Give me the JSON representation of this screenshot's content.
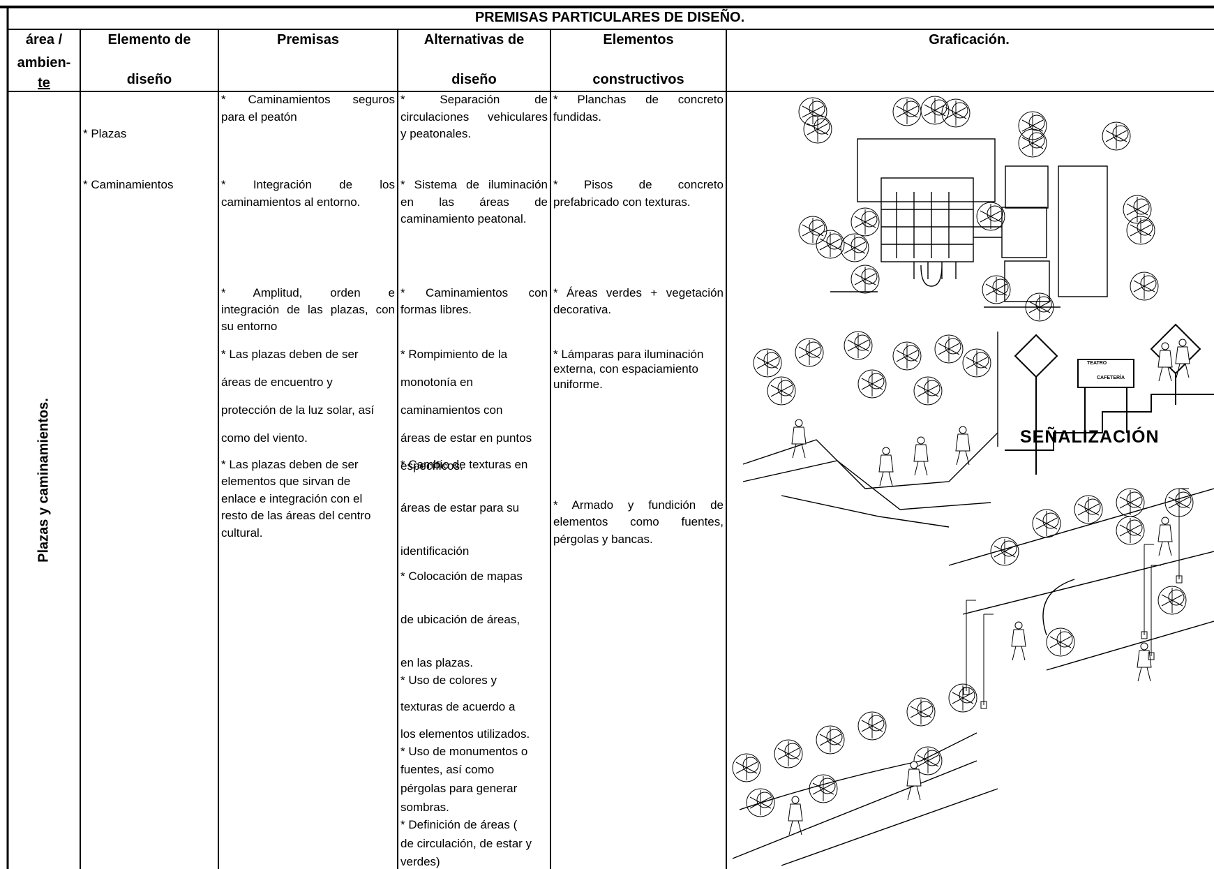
{
  "title": "PREMISAS PARTICULARES DE DISEÑO.",
  "headers": [
    [
      "área /",
      "ambien-",
      "te"
    ],
    [
      "Elemento de",
      "diseño"
    ],
    [
      "Premisas"
    ],
    [
      "Alternativas de",
      "diseño"
    ],
    [
      "Elementos",
      "constructivos"
    ],
    [
      "Graficación."
    ]
  ],
  "area": "Plazas y caminamientos.",
  "elementos_diseno": [
    [
      "* Plazas"
    ],
    [
      "* Caminamientos"
    ]
  ],
  "premisas": [
    [
      "* Caminamientos seguros",
      "para el peatón"
    ],
    [
      "* Integración de los",
      "caminamientos al entorno."
    ],
    [
      "* Amplitud, orden e",
      "integración de las plazas, con",
      "su entorno"
    ],
    [
      "* Las plazas deben de ser",
      "áreas de encuentro y",
      "protección de la luz solar, así",
      "como del viento."
    ],
    [
      "* Las plazas deben de ser",
      "elementos que sirvan de",
      "enlace e integración con el",
      "resto de las áreas del centro",
      "cultural."
    ]
  ],
  "alternativas": [
    [
      "* Separación de",
      "circulaciones vehiculares",
      "y peatonales."
    ],
    [
      "* Sistema de iluminación",
      "en las áreas de",
      "caminamiento peatonal."
    ],
    [
      "* Caminamientos con",
      "formas libres."
    ],
    [
      "* Rompimiento de la",
      "monotonía en",
      "caminamientos con",
      "áreas de estar en puntos",
      "específicos."
    ],
    [
      "* Cambio de texturas en",
      "áreas de estar para su",
      "identificación"
    ],
    [
      "* Colocación de mapas",
      "de ubicación de áreas,",
      "en las plazas."
    ],
    [
      "* Uso de colores y",
      "texturas de acuerdo a",
      "los elementos utilizados."
    ],
    [
      "* Uso de monumentos o",
      "fuentes, así como",
      "pérgolas para generar",
      "sombras."
    ],
    [
      "* Definición de áreas (",
      "de circulación, de estar y",
      "verdes)"
    ]
  ],
  "elementos_constructivos": [
    [
      "* Planchas de concreto",
      "fundidas."
    ],
    [
      "* Pisos de concreto",
      "prefabricado con texturas."
    ],
    [
      "* Áreas verdes + vegetación",
      "decorativa."
    ],
    [
      "* Lámparas para iluminación",
      "externa, con espaciamiento",
      "uniforme."
    ],
    [
      "* Armado y fundición de",
      "elementos como fuentes,",
      "pérgolas y bancas."
    ]
  ],
  "graficacion": {
    "sign_label": "SEÑALIZACIÓN",
    "sign_texts": [
      "TEATRO",
      "CAFETERÍA"
    ]
  }
}
